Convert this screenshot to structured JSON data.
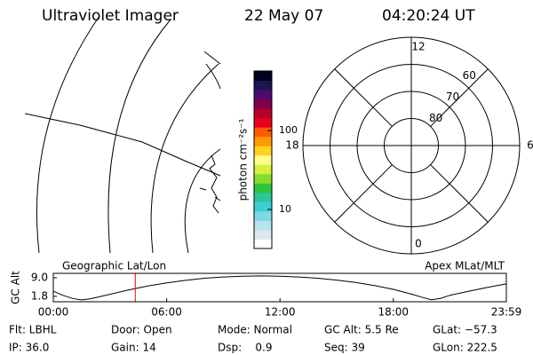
{
  "header": {
    "title": "Ultraviolet Imager",
    "date": "22 May 07",
    "time": "04:20:24 UT"
  },
  "chart_data": [
    {
      "type": "colorbar",
      "label": "photon cm⁻²s⁻¹",
      "log_scale": true,
      "ylim": [
        3.2,
        570
      ],
      "yticks": [
        10,
        100
      ],
      "colors": [
        "#ffffff",
        "#dde9ee",
        "#b8e2ec",
        "#7fd8e6",
        "#3ccfd8",
        "#2cc69a",
        "#2ec43c",
        "#86de2a",
        "#d6f040",
        "#ffff88",
        "#ffd21e",
        "#ff9a00",
        "#ff5a00",
        "#e8001c",
        "#b40028",
        "#800050",
        "#4b0c6e",
        "#1e1450",
        "#000020"
      ]
    },
    {
      "type": "polar",
      "rlim": [
        90,
        50
      ],
      "rticks": [
        60,
        70,
        80
      ],
      "thetaticks": [
        0,
        6,
        12,
        18
      ]
    },
    {
      "type": "line",
      "title_left": "Geographic Lat/Lon",
      "title_right": "Apex MLat/MLT",
      "ylabel": "GC Alt",
      "x": [
        0,
        0.5,
        1,
        1.5,
        2,
        3,
        4,
        5,
        6,
        7,
        8,
        9,
        10,
        11,
        12,
        13,
        14,
        15,
        16,
        17,
        18,
        19,
        19.5,
        20,
        20.5,
        21,
        22,
        23,
        23.98
      ],
      "xlim": [
        0,
        23.983
      ],
      "xticks": [
        {
          "value": 0,
          "label": "00:00"
        },
        {
          "value": 6,
          "label": "06:00"
        },
        {
          "value": 12,
          "label": "12:00"
        },
        {
          "value": 18,
          "label": "18:00"
        },
        {
          "value": 23.983,
          "label": "23:59"
        }
      ],
      "ylim": [
        -0.3,
        10.7
      ],
      "yticks": [
        {
          "value": 9,
          "label": "9.0"
        },
        1.8
      ],
      "series": [
        {
          "color": "#000000",
          "values": [
            3.8,
            2.2,
            1.0,
            0.4,
            0.9,
            2.6,
            4.3,
            5.8,
            7.0,
            8.0,
            8.8,
            9.3,
            9.6,
            9.7,
            9.6,
            9.3,
            8.8,
            8.1,
            7.2,
            6.0,
            4.5,
            2.6,
            1.5,
            0.5,
            1.0,
            2.2,
            3.8,
            5.3,
            6.6
          ]
        }
      ],
      "marker": {
        "x": 4.34,
        "color": "#ff0000"
      }
    }
  ],
  "info": [
    [
      "Flt: LBHL",
      "Door: Open",
      "Mode: Normal",
      "GC Alt: 5.5 Re",
      "GLat: −57.3"
    ],
    [
      "IP: 36.0",
      "Gain: 14",
      "Dsp:    0.9",
      "Seq: 39",
      "GLon: 222.5"
    ]
  ]
}
